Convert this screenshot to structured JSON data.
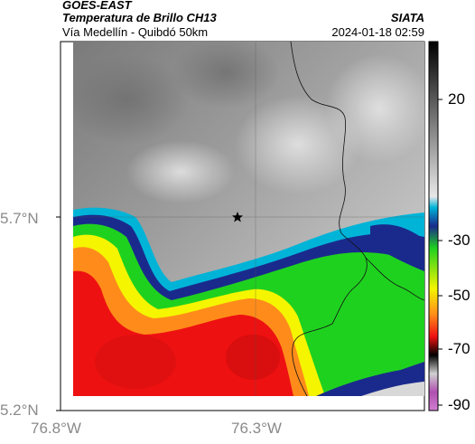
{
  "header": {
    "satellite": "GOES-EAST",
    "product": "Temperatura de Brillo CH13",
    "region": "Vía Medellín - Quibdó 50km",
    "source": "SIATA",
    "datetime": "2024-01-18 02:59"
  },
  "axes": {
    "lat_labels": [
      "5.7°N",
      "5.2°N"
    ],
    "lon_labels": [
      "76.8°W",
      "76.3°W"
    ]
  },
  "colorbar": {
    "labels": [
      "20",
      "-30",
      "-50",
      "-70",
      "-90"
    ],
    "palette": {
      "gray_light": "#e6e6e6",
      "gray_dark": "#7d7d7d",
      "blue": "#1a2a8c",
      "cyan": "#00b4d8",
      "green": "#1fd11f",
      "yellow": "#f5f500",
      "orange": "#ff8c1a",
      "red": "#ee1111",
      "black": "#000000",
      "magenta": "#b04fb0"
    }
  },
  "map": {
    "marker": "star-icon"
  }
}
